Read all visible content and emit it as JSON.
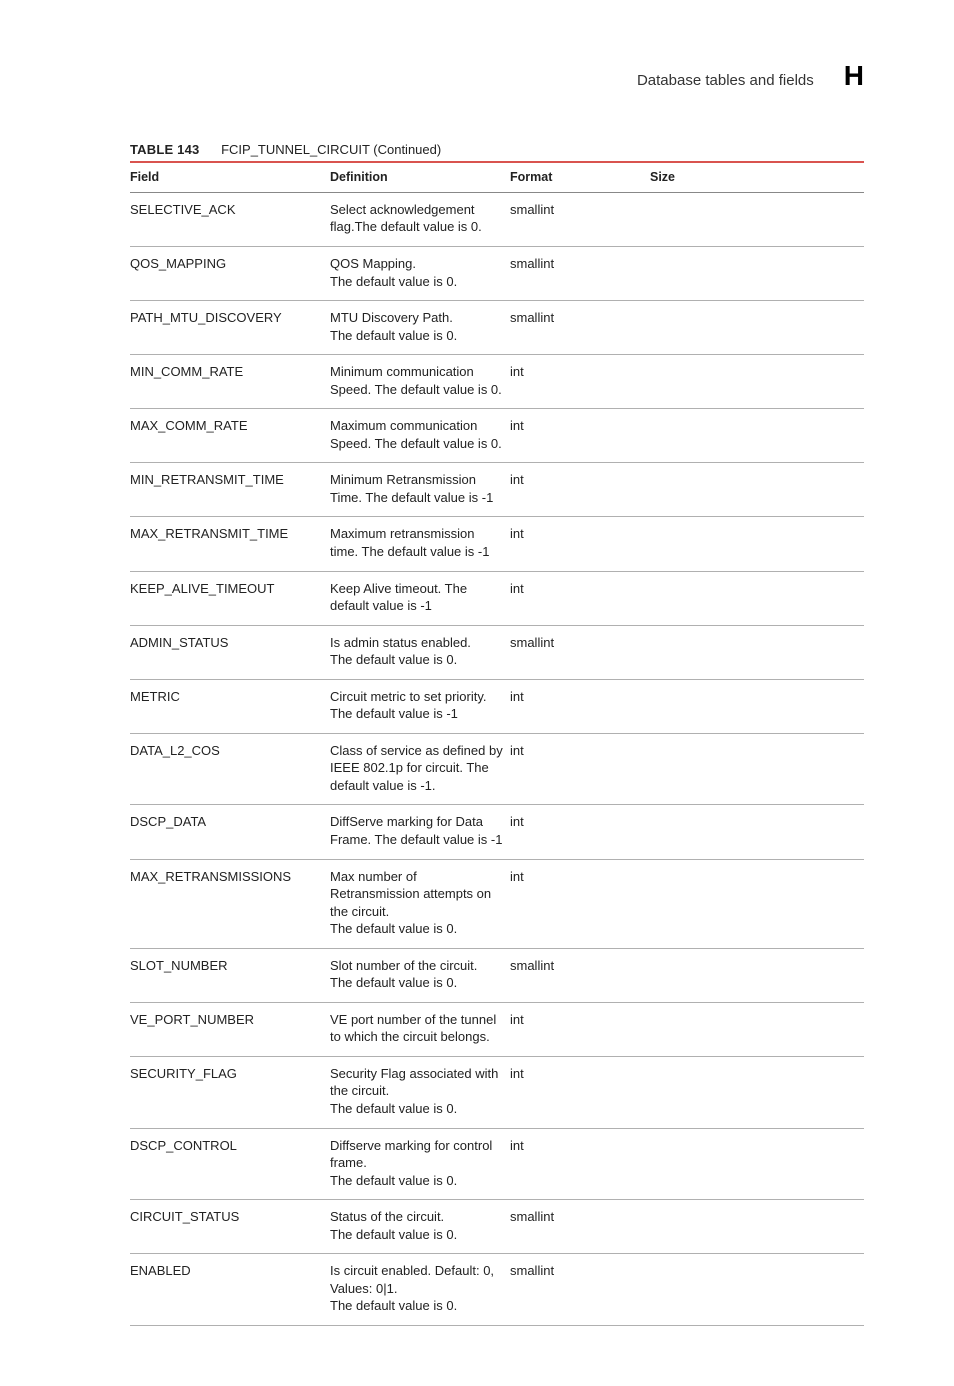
{
  "header": {
    "section_title": "Database tables and fields",
    "appendix_letter": "H"
  },
  "table": {
    "caption_number": "TABLE 143",
    "caption_name": "FCIP_TUNNEL_CIRCUIT (Continued)",
    "columns": [
      "Field",
      "Definition",
      "Format",
      "Size"
    ],
    "rows": [
      {
        "field": "SELECTIVE_ACK",
        "definition": "Select acknowledgement flag.The default value is 0.",
        "format": "smallint",
        "size": ""
      },
      {
        "field": "QOS_MAPPING",
        "definition": "QOS Mapping.\nThe default value is 0.",
        "format": "smallint",
        "size": ""
      },
      {
        "field": "PATH_MTU_DISCOVERY",
        "definition": "MTU Discovery Path.\nThe default value is 0.",
        "format": "smallint",
        "size": ""
      },
      {
        "field": "MIN_COMM_RATE",
        "definition": "Minimum communication Speed. The default value is 0.",
        "format": "int",
        "size": ""
      },
      {
        "field": "MAX_COMM_RATE",
        "definition": "Maximum communication Speed. The default value is 0.",
        "format": "int",
        "size": ""
      },
      {
        "field": "MIN_RETRANSMIT_TIME",
        "definition": "Minimum Retransmission Time. The default value is -1",
        "format": "int",
        "size": ""
      },
      {
        "field": "MAX_RETRANSMIT_TIME",
        "definition": "Maximum retransmission time. The default value is -1",
        "format": "int",
        "size": ""
      },
      {
        "field": "KEEP_ALIVE_TIMEOUT",
        "definition": "Keep Alive timeout. The default value is -1",
        "format": "int",
        "size": ""
      },
      {
        "field": "ADMIN_STATUS",
        "definition": "Is admin status enabled.\nThe default value is 0.",
        "format": "smallint",
        "size": ""
      },
      {
        "field": "METRIC",
        "definition": "Circuit metric to set priority.\nThe default value is -1",
        "format": "int",
        "size": ""
      },
      {
        "field": "DATA_L2_COS",
        "definition": "Class of service as defined by IEEE 802.1p for circuit. The default value is -1.",
        "format": "int",
        "size": ""
      },
      {
        "field": "DSCP_DATA",
        "definition": "DiffServe marking for Data Frame. The default value is -1",
        "format": "int",
        "size": ""
      },
      {
        "field": "MAX_RETRANSMISSIONS",
        "definition": "Max number of Retransmission attempts on the circuit.\nThe default value is 0.",
        "format": "int",
        "size": ""
      },
      {
        "field": "SLOT_NUMBER",
        "definition": "Slot number of the circuit.\nThe default value is 0.",
        "format": "smallint",
        "size": ""
      },
      {
        "field": "VE_PORT_NUMBER",
        "definition": "VE port number of the tunnel to which the circuit belongs.",
        "format": "int",
        "size": ""
      },
      {
        "field": "SECURITY_FLAG",
        "definition": "Security Flag associated with the circuit.\nThe default value is 0.",
        "format": "int",
        "size": ""
      },
      {
        "field": "DSCP_CONTROL",
        "definition": "Diffserve marking for control frame.\nThe default value is 0.",
        "format": "int",
        "size": ""
      },
      {
        "field": "CIRCUIT_STATUS",
        "definition": "Status of the circuit.\nThe default value is 0.",
        "format": "smallint",
        "size": ""
      },
      {
        "field": "ENABLED",
        "definition": "Is circuit enabled. Default: 0, Values: 0|1.\nThe default value is 0.",
        "format": "smallint",
        "size": ""
      }
    ]
  }
}
